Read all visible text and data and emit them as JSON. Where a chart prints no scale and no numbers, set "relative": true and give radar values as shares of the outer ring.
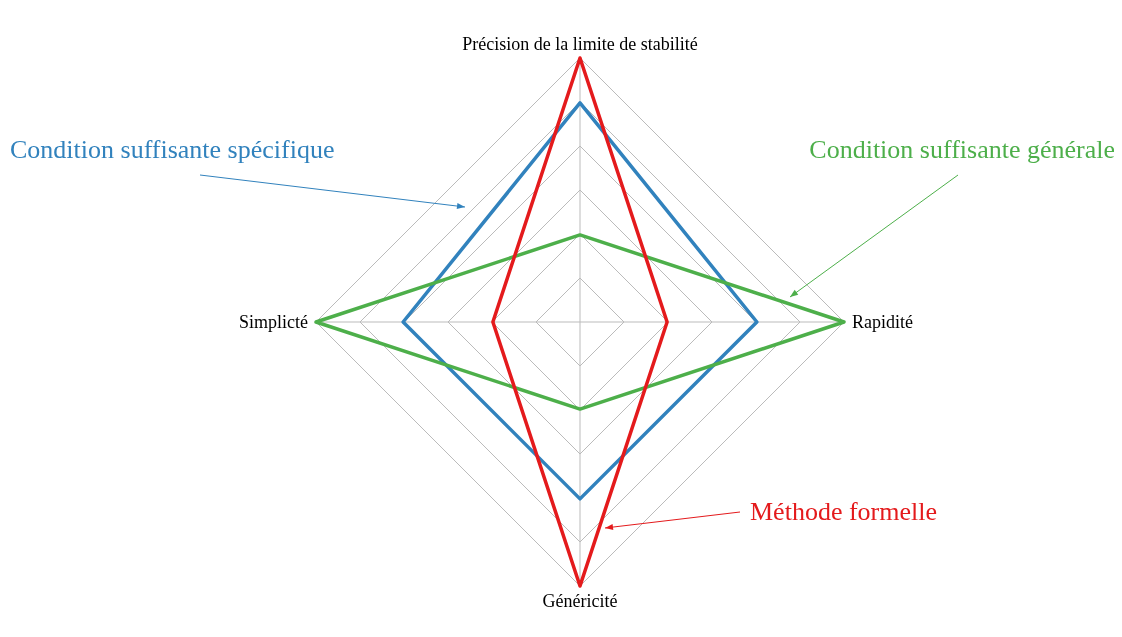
{
  "chart_data": {
    "type": "radar",
    "relative": true,
    "grid": true,
    "marker": "none",
    "categories": [
      "Précision de la limite de stabilité",
      "Rapidité",
      "Généricité",
      "Simplicté"
    ],
    "series": [
      {
        "name": "Condition suffisante spécifique",
        "color": "#3182bd",
        "values": [
          0.83,
          0.67,
          0.67,
          0.67
        ]
      },
      {
        "name": "Condition suffisante générale",
        "color": "#4daf4a",
        "values": [
          0.33,
          1,
          0.33,
          1
        ]
      },
      {
        "name": "Méthode formelle",
        "color": "#e41a1c",
        "values": [
          1,
          0.33,
          1,
          0.33
        ]
      }
    ]
  }
}
